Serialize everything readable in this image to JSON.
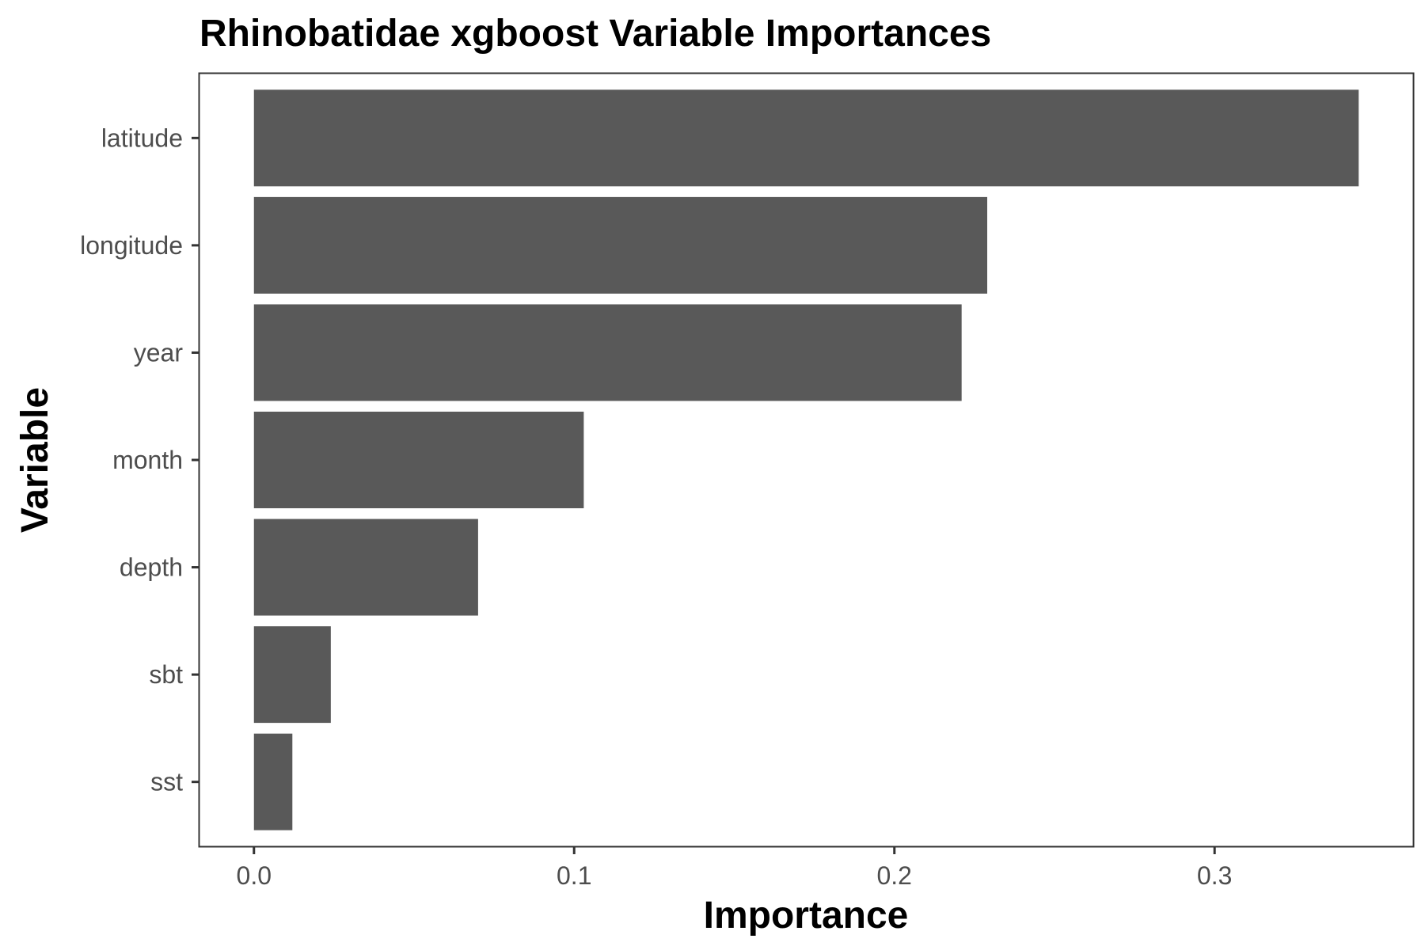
{
  "chart_data": {
    "type": "bar",
    "orientation": "horizontal",
    "title": "Rhinobatidae xgboost Variable Importances",
    "xlabel": "Importance",
    "ylabel": "Variable",
    "categories": [
      "latitude",
      "longitude",
      "year",
      "month",
      "depth",
      "sbt",
      "sst"
    ],
    "values": [
      0.345,
      0.229,
      0.221,
      0.103,
      0.07,
      0.024,
      0.012
    ],
    "xlim": [
      -0.017,
      0.362
    ],
    "xticks": [
      "0.0",
      "0.1",
      "0.2",
      "0.3"
    ],
    "grid": false,
    "legend": "none",
    "bar_color": "#595959"
  }
}
